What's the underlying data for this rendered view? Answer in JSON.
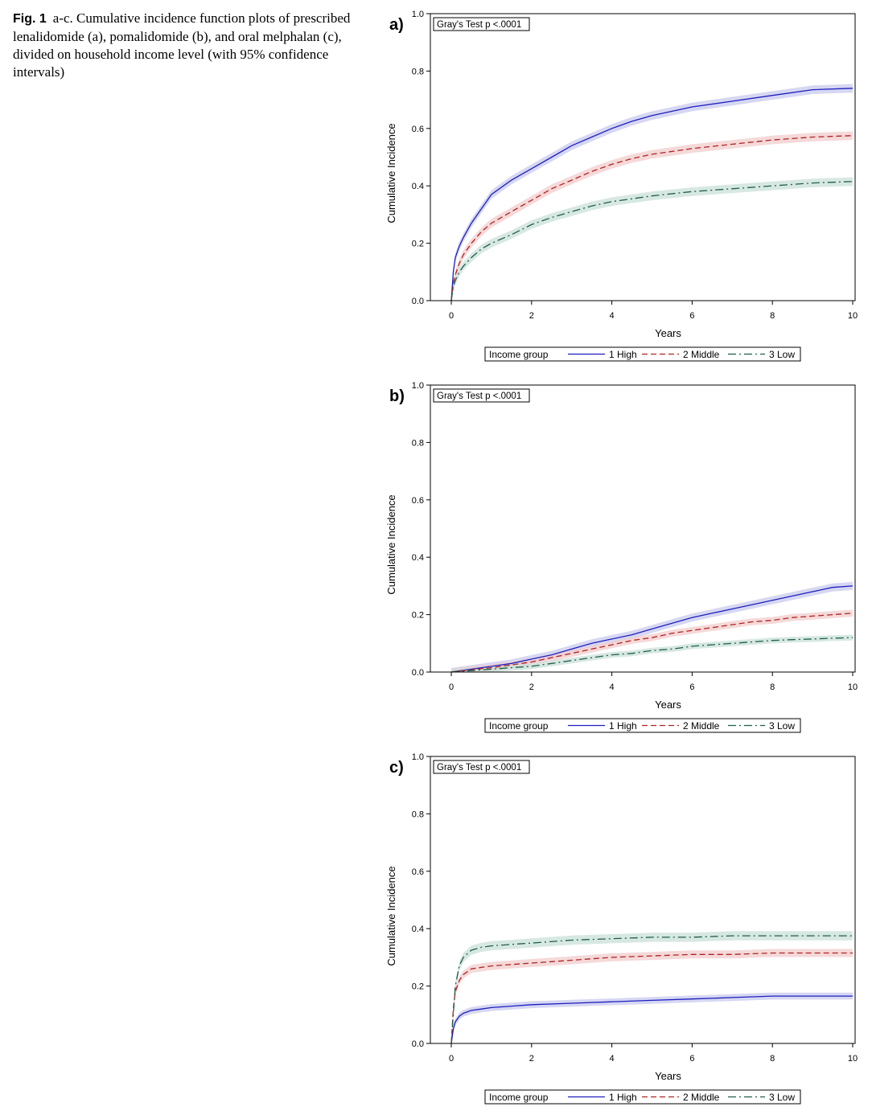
{
  "caption": {
    "label": "Fig. 1",
    "text": "a-c. Cumulative incidence function plots of prescribed lenalidomide (a), pomalidomide (b), and oral melphalan (c), divided on household income level (with 95% confidence intervals)"
  },
  "colors": {
    "high": "#1f1fbf",
    "middle": "#b22222",
    "low": "#1f5e4a",
    "high_band": "#c8c9ee",
    "middle_band": "#f2cccc",
    "low_band": "#c9e0d8"
  },
  "chart_data": [
    {
      "type": "line",
      "panel_label": "a)",
      "annotation": "Gray's Test p <.0001",
      "xlabel": "Years",
      "ylabel": "Cumulative Incidence",
      "xlim": [
        0,
        10
      ],
      "ylim": [
        0,
        1
      ],
      "xticks": [
        "0",
        "2",
        "4",
        "6",
        "8",
        "10"
      ],
      "yticks": [
        "0.0",
        "0.2",
        "0.4",
        "0.6",
        "0.8",
        "1.0"
      ],
      "grid": false,
      "legend": {
        "title": "Income group",
        "position": "bottom",
        "entries": [
          "1 High",
          "2 Middle",
          "3 Low"
        ]
      },
      "x": [
        0,
        0.05,
        0.1,
        0.2,
        0.3,
        0.5,
        0.75,
        1,
        1.5,
        2,
        2.5,
        3,
        3.5,
        4,
        4.5,
        5,
        6,
        7,
        8,
        9,
        10
      ],
      "series": [
        {
          "name": "1 High",
          "ci_halfwidth": 0.015,
          "values": [
            0,
            0.1,
            0.15,
            0.19,
            0.22,
            0.27,
            0.32,
            0.37,
            0.42,
            0.46,
            0.5,
            0.54,
            0.57,
            0.6,
            0.625,
            0.645,
            0.675,
            0.695,
            0.715,
            0.735,
            0.74
          ]
        },
        {
          "name": "2 Middle",
          "ci_halfwidth": 0.015,
          "values": [
            0,
            0.06,
            0.09,
            0.13,
            0.16,
            0.2,
            0.24,
            0.27,
            0.31,
            0.35,
            0.39,
            0.42,
            0.45,
            0.475,
            0.495,
            0.51,
            0.53,
            0.545,
            0.56,
            0.57,
            0.575
          ]
        },
        {
          "name": "3 Low",
          "ci_halfwidth": 0.015,
          "values": [
            0,
            0.05,
            0.07,
            0.1,
            0.12,
            0.15,
            0.18,
            0.2,
            0.23,
            0.265,
            0.29,
            0.31,
            0.33,
            0.345,
            0.355,
            0.365,
            0.38,
            0.39,
            0.4,
            0.41,
            0.415
          ]
        }
      ]
    },
    {
      "type": "line",
      "panel_label": "b)",
      "annotation": "Gray's Test p <.0001",
      "xlabel": "Years",
      "ylabel": "Cumulative Incidence",
      "xlim": [
        0,
        10
      ],
      "ylim": [
        0,
        1
      ],
      "xticks": [
        "0",
        "2",
        "4",
        "6",
        "8",
        "10"
      ],
      "yticks": [
        "0.0",
        "0.2",
        "0.4",
        "0.6",
        "0.8",
        "1.0"
      ],
      "grid": false,
      "legend": {
        "title": "Income group",
        "position": "bottom",
        "entries": [
          "1 High",
          "2 Middle",
          "3 Low"
        ]
      },
      "x": [
        0,
        0.5,
        1,
        1.5,
        2,
        2.5,
        3,
        3.5,
        4,
        4.5,
        5,
        5.5,
        6,
        6.5,
        7,
        7.5,
        8,
        8.5,
        9,
        9.5,
        10
      ],
      "series": [
        {
          "name": "1 High",
          "ci_halfwidth": 0.014,
          "values": [
            0,
            0.01,
            0.02,
            0.03,
            0.045,
            0.06,
            0.08,
            0.1,
            0.115,
            0.13,
            0.15,
            0.17,
            0.19,
            0.205,
            0.22,
            0.235,
            0.25,
            0.265,
            0.28,
            0.295,
            0.3
          ]
        },
        {
          "name": "2 Middle",
          "ci_halfwidth": 0.012,
          "values": [
            0,
            0.008,
            0.015,
            0.025,
            0.035,
            0.05,
            0.065,
            0.08,
            0.095,
            0.11,
            0.12,
            0.135,
            0.145,
            0.155,
            0.165,
            0.175,
            0.18,
            0.19,
            0.195,
            0.2,
            0.205
          ]
        },
        {
          "name": "3 Low",
          "ci_halfwidth": 0.01,
          "values": [
            0,
            0.005,
            0.01,
            0.015,
            0.02,
            0.03,
            0.04,
            0.05,
            0.06,
            0.065,
            0.075,
            0.08,
            0.09,
            0.095,
            0.1,
            0.105,
            0.11,
            0.113,
            0.115,
            0.118,
            0.12
          ]
        }
      ]
    },
    {
      "type": "line",
      "panel_label": "c)",
      "annotation": "Gray's Test p <.0001",
      "xlabel": "Years",
      "ylabel": "Cumulative Incidence",
      "xlim": [
        0,
        10
      ],
      "ylim": [
        0,
        1
      ],
      "xticks": [
        "0",
        "2",
        "4",
        "6",
        "8",
        "10"
      ],
      "yticks": [
        "0.0",
        "0.2",
        "0.4",
        "0.6",
        "0.8",
        "1.0"
      ],
      "grid": false,
      "legend": {
        "title": "Income group",
        "position": "bottom",
        "entries": [
          "1 High",
          "2 Middle",
          "3 Low"
        ]
      },
      "x": [
        0,
        0.05,
        0.1,
        0.2,
        0.3,
        0.5,
        0.75,
        1,
        1.5,
        2,
        3,
        4,
        5,
        6,
        7,
        8,
        9,
        10
      ],
      "series": [
        {
          "name": "1 High",
          "ci_halfwidth": 0.012,
          "values": [
            0,
            0.05,
            0.075,
            0.095,
            0.105,
            0.115,
            0.12,
            0.125,
            0.13,
            0.135,
            0.14,
            0.145,
            0.15,
            0.155,
            0.16,
            0.165,
            0.165,
            0.165
          ]
        },
        {
          "name": "2 Middle",
          "ci_halfwidth": 0.014,
          "values": [
            0,
            0.12,
            0.18,
            0.22,
            0.24,
            0.26,
            0.265,
            0.27,
            0.275,
            0.28,
            0.29,
            0.3,
            0.305,
            0.31,
            0.31,
            0.315,
            0.315,
            0.315
          ]
        },
        {
          "name": "3 Low",
          "ci_halfwidth": 0.016,
          "values": [
            0,
            0.1,
            0.2,
            0.27,
            0.3,
            0.325,
            0.335,
            0.34,
            0.345,
            0.35,
            0.36,
            0.365,
            0.37,
            0.37,
            0.375,
            0.375,
            0.375,
            0.375
          ]
        }
      ]
    }
  ]
}
